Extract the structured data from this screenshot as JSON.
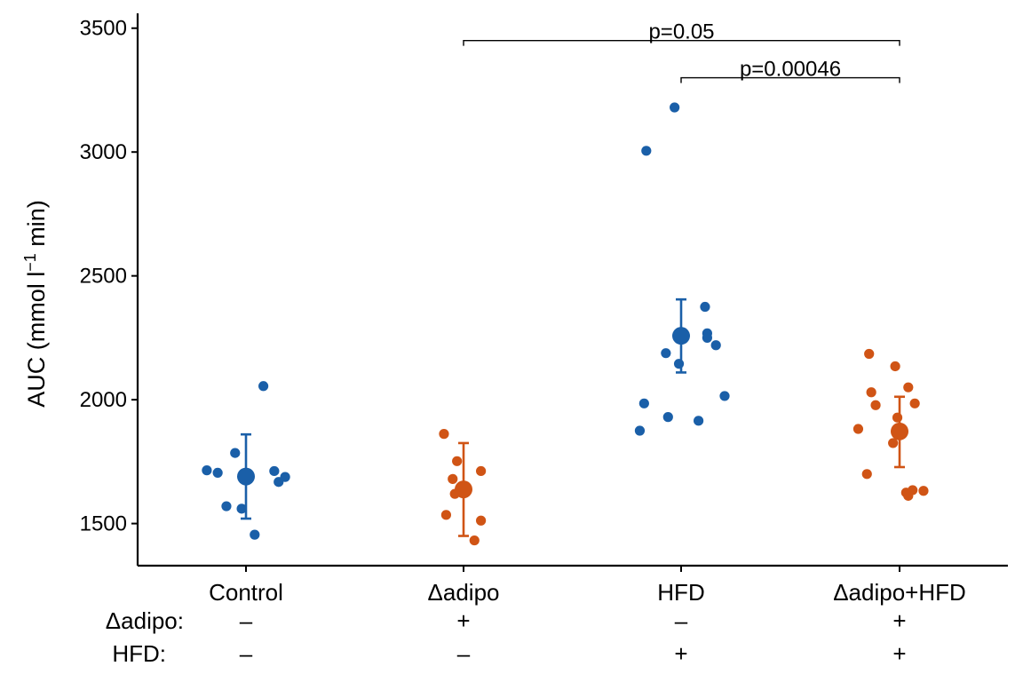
{
  "colors": {
    "blue": "#1A5FA8",
    "orange": "#D05415",
    "axis": "#000000"
  },
  "chart_data": {
    "type": "scatter",
    "ylabel": {
      "prefix": "AUC (mmol l",
      "superscript": "−1",
      "suffix": " min)"
    },
    "ylim": [
      1330,
      3560
    ],
    "y_ticks": [
      1500,
      2000,
      2500,
      3000,
      3500
    ],
    "y_tick_labels": [
      "1500",
      "2000",
      "2500",
      "3000",
      "3500"
    ],
    "categories": [
      "Control",
      "Δadipo",
      "HFD",
      "Δadipo+HFD"
    ],
    "factor_rows": [
      {
        "label": "Δadipo:",
        "values": [
          "–",
          "+",
          "–",
          "+"
        ]
      },
      {
        "label": "HFD:",
        "values": [
          "–",
          "–",
          "+",
          "+"
        ]
      }
    ],
    "groups": [
      {
        "category": "Control",
        "color": "blue",
        "mean": 1690,
        "err_low": 1520,
        "err_high": 1860,
        "points": [
          {
            "dx": -0.18,
            "y": 1715
          },
          {
            "dx": -0.13,
            "y": 1705
          },
          {
            "dx": -0.05,
            "y": 1785
          },
          {
            "dx": 0.08,
            "y": 2055
          },
          {
            "dx": 0.13,
            "y": 1712
          },
          {
            "dx": 0.15,
            "y": 1668
          },
          {
            "dx": 0.18,
            "y": 1688
          },
          {
            "dx": -0.09,
            "y": 1570
          },
          {
            "dx": -0.02,
            "y": 1560
          },
          {
            "dx": 0.04,
            "y": 1455
          }
        ]
      },
      {
        "category": "Δadipo",
        "color": "orange",
        "mean": 1638,
        "err_low": 1450,
        "err_high": 1825,
        "points": [
          {
            "dx": -0.09,
            "y": 1862
          },
          {
            "dx": -0.03,
            "y": 1752
          },
          {
            "dx": 0.08,
            "y": 1712
          },
          {
            "dx": -0.05,
            "y": 1680
          },
          {
            "dx": -0.04,
            "y": 1620
          },
          {
            "dx": -0.08,
            "y": 1535
          },
          {
            "dx": 0.08,
            "y": 1512
          },
          {
            "dx": 0.05,
            "y": 1432
          }
        ]
      },
      {
        "category": "HFD",
        "color": "blue",
        "mean": 2258,
        "err_low": 2110,
        "err_high": 2405,
        "points": [
          {
            "dx": -0.16,
            "y": 3005
          },
          {
            "dx": -0.03,
            "y": 3180
          },
          {
            "dx": 0.11,
            "y": 2375
          },
          {
            "dx": 0.12,
            "y": 2268
          },
          {
            "dx": 0.12,
            "y": 2250
          },
          {
            "dx": 0.16,
            "y": 2220
          },
          {
            "dx": -0.07,
            "y": 2188
          },
          {
            "dx": -0.01,
            "y": 2145
          },
          {
            "dx": 0.2,
            "y": 2015
          },
          {
            "dx": -0.17,
            "y": 1985
          },
          {
            "dx": -0.06,
            "y": 1930
          },
          {
            "dx": 0.08,
            "y": 1915
          },
          {
            "dx": -0.19,
            "y": 1875
          }
        ]
      },
      {
        "category": "Δadipo+HFD",
        "color": "orange",
        "mean": 1872,
        "err_low": 1728,
        "err_high": 2012,
        "points": [
          {
            "dx": -0.14,
            "y": 2185
          },
          {
            "dx": -0.02,
            "y": 2135
          },
          {
            "dx": -0.13,
            "y": 2030
          },
          {
            "dx": 0.04,
            "y": 2050
          },
          {
            "dx": -0.11,
            "y": 1978
          },
          {
            "dx": 0.07,
            "y": 1985
          },
          {
            "dx": -0.01,
            "y": 1928
          },
          {
            "dx": -0.19,
            "y": 1882
          },
          {
            "dx": -0.03,
            "y": 1825
          },
          {
            "dx": -0.15,
            "y": 1700
          },
          {
            "dx": 0.03,
            "y": 1625
          },
          {
            "dx": 0.06,
            "y": 1635
          },
          {
            "dx": 0.11,
            "y": 1632
          },
          {
            "dx": 0.04,
            "y": 1612
          }
        ]
      }
    ],
    "significance": [
      {
        "from": "Δadipo",
        "to": "Δadipo+HFD",
        "y": 3450,
        "label": "p=0.05"
      },
      {
        "from": "HFD",
        "to": "Δadipo+HFD",
        "y": 3300,
        "label": "p=0.00046"
      }
    ]
  }
}
